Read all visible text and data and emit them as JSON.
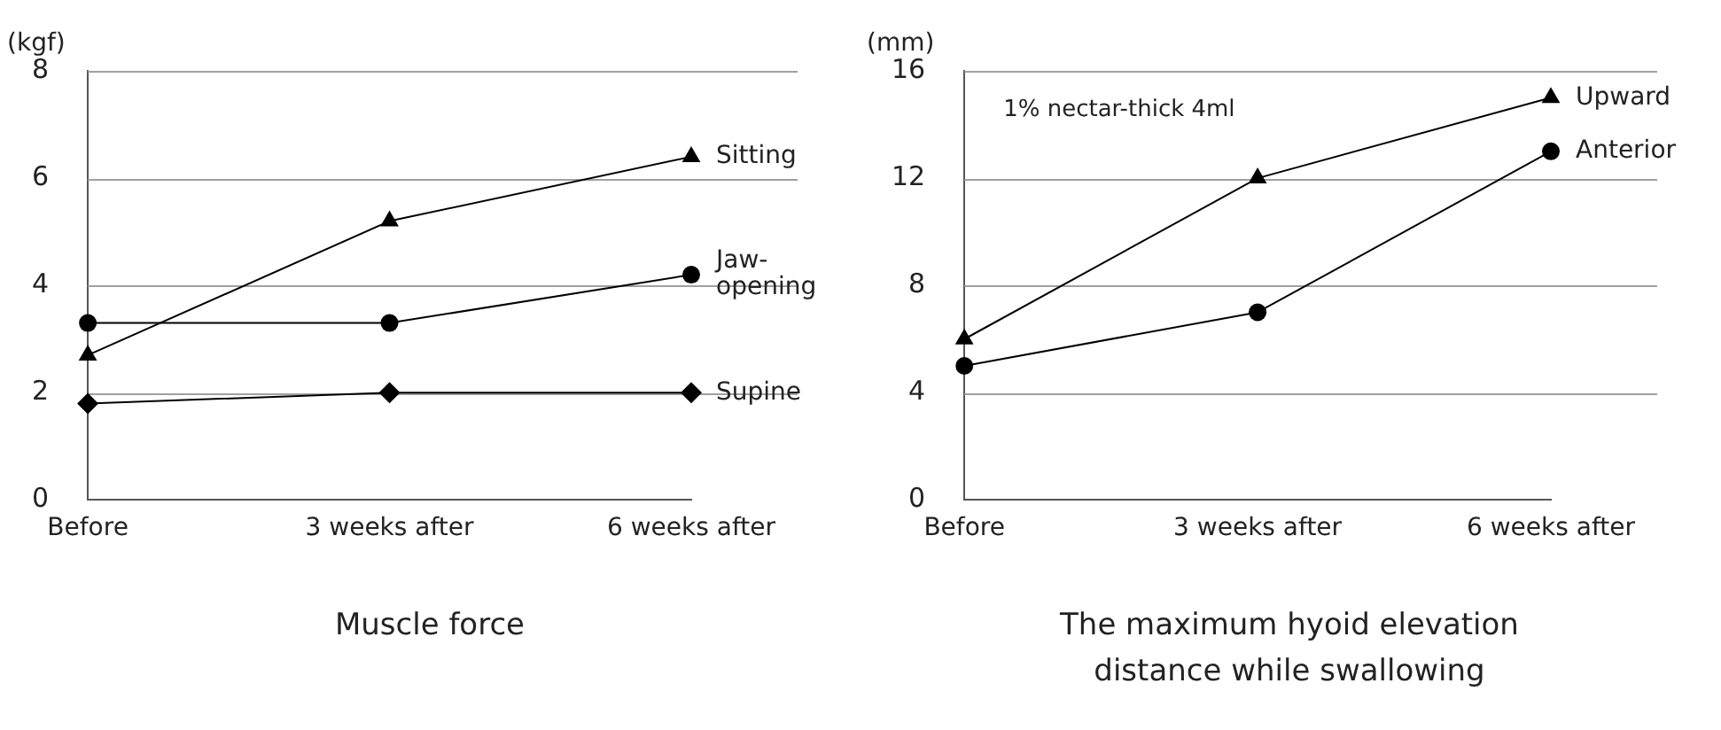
{
  "chart_data": [
    {
      "type": "line",
      "title": "Muscle force",
      "ylabel": "(kgf)",
      "categories": [
        "Before",
        "3 weeks after",
        "6 weeks after"
      ],
      "ylim": [
        0,
        8
      ],
      "yticks": [
        0,
        2,
        4,
        6,
        8
      ],
      "grid": "y",
      "legend": false,
      "line_style": "solid",
      "series": [
        {
          "name": "Sitting",
          "color": "#000000",
          "marker": "triangle",
          "values": [
            2.7,
            5.2,
            6.4
          ]
        },
        {
          "name": "Jaw-opening",
          "color": "#000000",
          "marker": "circle",
          "values": [
            3.3,
            3.3,
            4.2
          ]
        },
        {
          "name": "Supine",
          "color": "#000000",
          "marker": "diamond",
          "values": [
            1.8,
            2.0,
            2.0
          ]
        }
      ]
    },
    {
      "type": "line",
      "title": "The maximum hyoid elevation distance while swallowing",
      "ylabel": "(mm)",
      "annotations": [
        "1% nectar-thick 4ml"
      ],
      "categories": [
        "Before",
        "3 weeks after",
        "6 weeks after"
      ],
      "ylim": [
        0,
        16
      ],
      "yticks": [
        0,
        4,
        8,
        12,
        16
      ],
      "grid": "y",
      "legend": false,
      "line_style": "solid",
      "series": [
        {
          "name": "Upward",
          "color": "#000000",
          "marker": "triangle",
          "values": [
            6,
            12,
            15
          ]
        },
        {
          "name": "Anterior",
          "color": "#000000",
          "marker": "circle",
          "values": [
            5,
            7,
            13
          ]
        }
      ]
    }
  ]
}
